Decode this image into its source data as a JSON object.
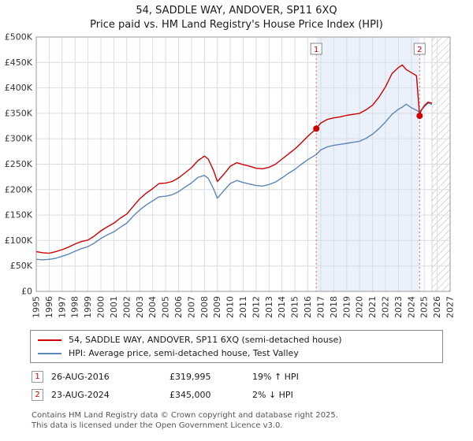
{
  "title": "54, SADDLE WAY, ANDOVER, SP11 6XQ",
  "subtitle": "Price paid vs. HM Land Registry's House Price Index (HPI)",
  "chart_data": {
    "type": "line",
    "x_range": [
      1995,
      2027
    ],
    "y_range": [
      0,
      500000
    ],
    "x_ticks": [
      1995,
      1996,
      1997,
      1998,
      1999,
      2000,
      2001,
      2002,
      2003,
      2004,
      2005,
      2006,
      2007,
      2008,
      2009,
      2010,
      2011,
      2012,
      2013,
      2014,
      2015,
      2016,
      2017,
      2018,
      2019,
      2020,
      2021,
      2022,
      2023,
      2024,
      2025,
      2026,
      2027
    ],
    "y_ticks": [
      {
        "v": 0,
        "label": "£0"
      },
      {
        "v": 50000,
        "label": "£50K"
      },
      {
        "v": 100000,
        "label": "£100K"
      },
      {
        "v": 150000,
        "label": "£150K"
      },
      {
        "v": 200000,
        "label": "£200K"
      },
      {
        "v": 250000,
        "label": "£250K"
      },
      {
        "v": 300000,
        "label": "£300K"
      },
      {
        "v": 350000,
        "label": "£350K"
      },
      {
        "v": 400000,
        "label": "£400K"
      },
      {
        "v": 450000,
        "label": "£450K"
      },
      {
        "v": 500000,
        "label": "£500K"
      }
    ],
    "x": [
      1995,
      1995.5,
      1996,
      1996.5,
      1997,
      1997.5,
      1998,
      1998.5,
      1999,
      1999.5,
      2000,
      2000.5,
      2001,
      2001.5,
      2002,
      2002.5,
      2003,
      2003.5,
      2004,
      2004.5,
      2005,
      2005.5,
      2006,
      2006.5,
      2007,
      2007.5,
      2008,
      2008.3,
      2008.7,
      2009,
      2009.5,
      2010,
      2010.5,
      2011,
      2011.5,
      2012,
      2012.5,
      2013,
      2013.5,
      2014,
      2014.5,
      2015,
      2015.5,
      2016,
      2016.65,
      2017,
      2017.5,
      2018,
      2018.5,
      2019,
      2019.5,
      2020,
      2020.5,
      2021,
      2021.5,
      2022,
      2022.5,
      2023,
      2023.3,
      2023.6,
      2024,
      2024.4,
      2024.64,
      2024.75,
      2025,
      2025.3,
      2025.6
    ],
    "series": [
      {
        "name": "54, SADDLE WAY, ANDOVER, SP11 6XQ (semi-detached house)",
        "color": "#cc0000",
        "values": [
          78000,
          76000,
          75000,
          78000,
          82000,
          87000,
          93000,
          98000,
          101000,
          109000,
          119000,
          127000,
          134000,
          144000,
          152000,
          167000,
          182000,
          193000,
          202000,
          212000,
          213000,
          216000,
          223000,
          233000,
          243000,
          257000,
          266000,
          260000,
          238000,
          216000,
          230000,
          246000,
          253000,
          249000,
          246000,
          242000,
          241000,
          244000,
          250000,
          260000,
          270000,
          280000,
          292000,
          305000,
          319995,
          331000,
          338000,
          341000,
          343000,
          346000,
          348000,
          350000,
          357000,
          366000,
          382000,
          402000,
          428000,
          440000,
          445000,
          436000,
          430000,
          424000,
          345000,
          355000,
          365000,
          372000,
          370000
        ]
      },
      {
        "name": "HPI: Average price, semi-detached house, Test Valley",
        "color": "#5d87b7",
        "values": [
          63000,
          62000,
          63000,
          65000,
          69000,
          73000,
          79000,
          84000,
          88000,
          95000,
          104000,
          111000,
          117000,
          126000,
          134000,
          148000,
          160000,
          170000,
          178000,
          186000,
          187000,
          190000,
          196000,
          205000,
          213000,
          224000,
          228000,
          222000,
          202000,
          183000,
          198000,
          212000,
          218000,
          214000,
          211000,
          208000,
          207000,
          210000,
          215000,
          223000,
          232000,
          240000,
          250000,
          259000,
          269000,
          278000,
          284000,
          287000,
          289000,
          291000,
          293000,
          295000,
          301000,
          309000,
          320000,
          333000,
          348000,
          358000,
          362000,
          368000,
          361000,
          356000,
          352000,
          356000,
          363000,
          370000,
          368000
        ]
      }
    ],
    "sales": [
      {
        "label": "1",
        "x": 2016.65,
        "value": 319995
      },
      {
        "label": "2",
        "x": 2024.64,
        "value": 345000
      }
    ],
    "shaded_region": [
      2016.65,
      2024.64
    ],
    "hatched_region": [
      2025.6,
      2027
    ],
    "grid": true,
    "legend_position": "bottom",
    "colors": {
      "grid": "#d9dde3",
      "shading": "#ebf1fa",
      "sale_line": "#e06666",
      "sale_point": "#cc0000"
    }
  },
  "annotations": [
    {
      "num": "1",
      "date": "26-AUG-2016",
      "price": "£319,995",
      "hpi_change": "19% ↑ HPI"
    },
    {
      "num": "2",
      "date": "23-AUG-2024",
      "price": "£345,000",
      "hpi_change": "2% ↓ HPI"
    }
  ],
  "footer": {
    "line1": "Contains HM Land Registry data © Crown copyright and database right 2025.",
    "line2": "This data is licensed under the Open Government Licence v3.0."
  }
}
